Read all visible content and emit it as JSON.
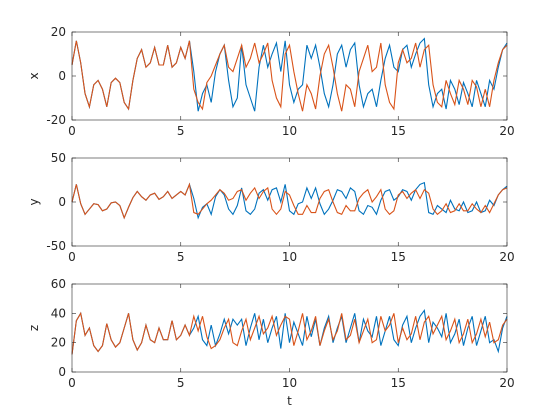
{
  "chart_data": [
    {
      "type": "line",
      "ylabel": "x",
      "x": [
        0,
        0.2,
        0.4,
        0.6,
        0.8,
        1,
        1.2,
        1.4,
        1.6,
        1.8,
        2,
        2.2,
        2.4,
        2.6,
        2.8,
        3,
        3.2,
        3.4,
        3.6,
        3.8,
        4,
        4.2,
        4.4,
        4.6,
        4.8,
        5,
        5.2,
        5.4,
        5.6,
        5.8,
        6,
        6.2,
        6.4,
        6.6,
        6.8,
        7,
        7.2,
        7.4,
        7.6,
        7.8,
        8,
        8.2,
        8.4,
        8.6,
        8.8,
        9,
        9.2,
        9.4,
        9.6,
        9.8,
        10,
        10.2,
        10.4,
        10.6,
        10.8,
        11,
        11.2,
        11.4,
        11.6,
        11.8,
        12,
        12.2,
        12.4,
        12.6,
        12.8,
        13,
        13.2,
        13.4,
        13.6,
        13.8,
        14,
        14.2,
        14.4,
        14.6,
        14.8,
        15,
        15.2,
        15.4,
        15.6,
        15.8,
        16,
        16.2,
        16.4,
        16.6,
        16.8,
        17,
        17.2,
        17.4,
        17.6,
        17.8,
        18,
        18.2,
        18.4,
        18.6,
        18.8,
        19,
        19.2,
        19.4,
        19.6,
        19.8,
        20
      ],
      "xlim": [
        0,
        20
      ],
      "xticks": [
        0,
        5,
        10,
        15,
        20
      ],
      "ylim": [
        -20,
        20
      ],
      "yticks": [
        -20,
        0,
        20
      ],
      "series": [
        {
          "color": "#0072bd",
          "values": [
            5,
            16,
            6,
            -8,
            -14,
            -4,
            -2,
            -6,
            -14,
            -3,
            -1,
            -3,
            -12,
            -15,
            -2,
            8,
            12,
            4,
            6,
            13,
            5,
            5,
            14,
            4,
            6,
            13,
            8,
            16,
            2,
            -16,
            -8,
            -4,
            -12,
            2,
            10,
            14,
            -2,
            -14,
            -10,
            14,
            -4,
            -10,
            -16,
            4,
            14,
            4,
            10,
            15,
            2,
            16,
            -4,
            -12,
            -6,
            -4,
            14,
            8,
            14,
            4,
            -8,
            -14,
            -4,
            10,
            14,
            4,
            12,
            15,
            -4,
            -14,
            -8,
            -6,
            -14,
            -2,
            8,
            14,
            4,
            2,
            12,
            14,
            4,
            10,
            15,
            17,
            -4,
            -14,
            -8,
            -6,
            -15,
            -2,
            -6,
            -13,
            -3,
            -8,
            -14,
            -2,
            -8,
            -14,
            -2,
            -6,
            4,
            12,
            15
          ]
        },
        {
          "color": "#d95319",
          "values": [
            5,
            16,
            6,
            -8,
            -14,
            -4,
            -2,
            -6,
            -14,
            -3,
            -1,
            -3,
            -12,
            -15,
            -2,
            8,
            12,
            4,
            6,
            13,
            5,
            5,
            14,
            4,
            6,
            13,
            8,
            16,
            -6,
            -12,
            -15,
            -3,
            0,
            5,
            10,
            14,
            4,
            2,
            8,
            14,
            4,
            8,
            15,
            6,
            10,
            15,
            -2,
            -10,
            -14,
            10,
            14,
            2,
            -8,
            -16,
            -4,
            -8,
            -15,
            0,
            10,
            14,
            4,
            -8,
            -16,
            -4,
            -6,
            -14,
            2,
            8,
            14,
            2,
            4,
            15,
            -4,
            -12,
            -15,
            6,
            12,
            6,
            8,
            15,
            4,
            12,
            14,
            -4,
            -12,
            -14,
            -2,
            -8,
            -13,
            -2,
            -6,
            -13,
            -2,
            -5,
            -14,
            -6,
            -14,
            -2,
            6,
            12,
            14
          ]
        }
      ]
    },
    {
      "type": "line",
      "ylabel": "y",
      "x": [
        0,
        0.2,
        0.4,
        0.6,
        0.8,
        1,
        1.2,
        1.4,
        1.6,
        1.8,
        2,
        2.2,
        2.4,
        2.6,
        2.8,
        3,
        3.2,
        3.4,
        3.6,
        3.8,
        4,
        4.2,
        4.4,
        4.6,
        4.8,
        5,
        5.2,
        5.4,
        5.6,
        5.8,
        6,
        6.2,
        6.4,
        6.6,
        6.8,
        7,
        7.2,
        7.4,
        7.6,
        7.8,
        8,
        8.2,
        8.4,
        8.6,
        8.8,
        9,
        9.2,
        9.4,
        9.6,
        9.8,
        10,
        10.2,
        10.4,
        10.6,
        10.8,
        11,
        11.2,
        11.4,
        11.6,
        11.8,
        12,
        12.2,
        12.4,
        12.6,
        12.8,
        13,
        13.2,
        13.4,
        13.6,
        13.8,
        14,
        14.2,
        14.4,
        14.6,
        14.8,
        15,
        15.2,
        15.4,
        15.6,
        15.8,
        16,
        16.2,
        16.4,
        16.6,
        16.8,
        17,
        17.2,
        17.4,
        17.6,
        17.8,
        18,
        18.2,
        18.4,
        18.6,
        18.8,
        19,
        19.2,
        19.4,
        19.6,
        19.8,
        20
      ],
      "xlim": [
        0,
        20
      ],
      "xticks": [
        0,
        5,
        10,
        15,
        20
      ],
      "ylim": [
        -50,
        50
      ],
      "yticks": [
        -50,
        0,
        50
      ],
      "series": [
        {
          "color": "#0072bd",
          "values": [
            0,
            20,
            -2,
            -14,
            -8,
            -2,
            -3,
            -10,
            -8,
            -1,
            0,
            -4,
            -18,
            -6,
            5,
            12,
            6,
            2,
            8,
            10,
            3,
            6,
            12,
            4,
            8,
            12,
            8,
            20,
            4,
            -18,
            -6,
            -2,
            -14,
            6,
            14,
            8,
            -8,
            -14,
            -4,
            16,
            -10,
            -14,
            -8,
            10,
            14,
            2,
            14,
            16,
            0,
            20,
            -10,
            -14,
            -2,
            0,
            16,
            4,
            16,
            -2,
            -14,
            -8,
            2,
            14,
            12,
            4,
            16,
            12,
            -10,
            -14,
            -4,
            -6,
            -14,
            2,
            12,
            14,
            2,
            6,
            14,
            12,
            2,
            14,
            20,
            22,
            -12,
            -14,
            -4,
            -8,
            -12,
            2,
            -8,
            -10,
            0,
            -12,
            -10,
            0,
            -12,
            -10,
            2,
            -4,
            8,
            14,
            18
          ]
        },
        {
          "color": "#d95319",
          "values": [
            0,
            20,
            -2,
            -14,
            -8,
            -2,
            -3,
            -10,
            -8,
            -1,
            0,
            -4,
            -18,
            -6,
            5,
            12,
            6,
            2,
            8,
            10,
            3,
            6,
            12,
            4,
            8,
            12,
            8,
            20,
            -12,
            -14,
            -8,
            -2,
            2,
            8,
            14,
            10,
            2,
            4,
            12,
            14,
            2,
            10,
            16,
            4,
            12,
            16,
            -8,
            -14,
            -8,
            12,
            8,
            -4,
            -14,
            -14,
            -4,
            -12,
            -12,
            4,
            12,
            14,
            0,
            -12,
            -14,
            -4,
            -10,
            -10,
            4,
            10,
            14,
            0,
            6,
            14,
            -8,
            -14,
            -10,
            8,
            12,
            4,
            10,
            14,
            4,
            14,
            10,
            -8,
            -14,
            -10,
            -2,
            -12,
            -10,
            -2,
            -10,
            -10,
            -2,
            -8,
            -12,
            -4,
            -12,
            -2,
            8,
            14,
            16
          ]
        }
      ]
    },
    {
      "type": "line",
      "ylabel": "z",
      "xlabel": "t",
      "x": [
        0,
        0.2,
        0.4,
        0.6,
        0.8,
        1,
        1.2,
        1.4,
        1.6,
        1.8,
        2,
        2.2,
        2.4,
        2.6,
        2.8,
        3,
        3.2,
        3.4,
        3.6,
        3.8,
        4,
        4.2,
        4.4,
        4.6,
        4.8,
        5,
        5.2,
        5.4,
        5.6,
        5.8,
        6,
        6.2,
        6.4,
        6.6,
        6.8,
        7,
        7.2,
        7.4,
        7.6,
        7.8,
        8,
        8.2,
        8.4,
        8.6,
        8.8,
        9,
        9.2,
        9.4,
        9.6,
        9.8,
        10,
        10.2,
        10.4,
        10.6,
        10.8,
        11,
        11.2,
        11.4,
        11.6,
        11.8,
        12,
        12.2,
        12.4,
        12.6,
        12.8,
        13,
        13.2,
        13.4,
        13.6,
        13.8,
        14,
        14.2,
        14.4,
        14.6,
        14.8,
        15,
        15.2,
        15.4,
        15.6,
        15.8,
        16,
        16.2,
        16.4,
        16.6,
        16.8,
        17,
        17.2,
        17.4,
        17.6,
        17.8,
        18,
        18.2,
        18.4,
        18.6,
        18.8,
        19,
        19.2,
        19.4,
        19.6,
        19.8,
        20
      ],
      "xlim": [
        0,
        20
      ],
      "xticks": [
        0,
        5,
        10,
        15,
        20
      ],
      "ylim": [
        0,
        60
      ],
      "yticks": [
        0,
        20,
        40,
        60
      ],
      "series": [
        {
          "color": "#0072bd",
          "values": [
            12,
            35,
            40,
            25,
            30,
            18,
            14,
            18,
            33,
            22,
            17,
            20,
            30,
            40,
            22,
            15,
            20,
            32,
            22,
            20,
            30,
            22,
            22,
            35,
            22,
            25,
            32,
            25,
            30,
            38,
            22,
            18,
            32,
            18,
            26,
            36,
            26,
            36,
            32,
            36,
            18,
            30,
            40,
            22,
            36,
            20,
            30,
            38,
            16,
            40,
            20,
            34,
            26,
            18,
            38,
            24,
            36,
            18,
            30,
            38,
            20,
            30,
            38,
            20,
            30,
            40,
            20,
            36,
            28,
            24,
            38,
            18,
            28,
            38,
            22,
            18,
            32,
            38,
            20,
            30,
            38,
            42,
            20,
            34,
            30,
            24,
            40,
            20,
            26,
            36,
            18,
            30,
            38,
            18,
            28,
            38,
            20,
            22,
            14,
            30,
            38
          ]
        },
        {
          "color": "#d95319",
          "values": [
            12,
            35,
            40,
            25,
            30,
            18,
            14,
            18,
            33,
            22,
            17,
            20,
            30,
            40,
            22,
            15,
            20,
            32,
            22,
            20,
            30,
            22,
            22,
            35,
            22,
            25,
            32,
            25,
            38,
            28,
            38,
            24,
            16,
            18,
            22,
            30,
            36,
            20,
            18,
            28,
            36,
            22,
            30,
            38,
            26,
            30,
            38,
            25,
            32,
            38,
            36,
            18,
            28,
            40,
            22,
            28,
            38,
            18,
            28,
            36,
            22,
            28,
            40,
            22,
            25,
            36,
            20,
            28,
            36,
            20,
            22,
            38,
            28,
            32,
            40,
            20,
            30,
            22,
            26,
            38,
            22,
            34,
            38,
            26,
            32,
            38,
            22,
            28,
            36,
            20,
            26,
            36,
            20,
            26,
            36,
            24,
            34,
            20,
            22,
            32,
            36
          ]
        }
      ]
    }
  ]
}
